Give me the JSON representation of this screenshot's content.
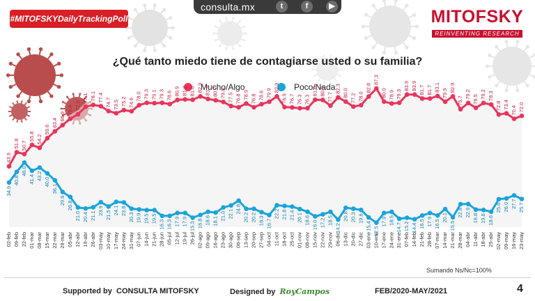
{
  "header": {
    "site": "consulta.mx",
    "tag": "#MITOFSKYDailyTrackingPoll",
    "logo_main": "MITOFSKY",
    "logo_sub": "REINVENTING RESEARCH",
    "icons": [
      "twitter-icon",
      "facebook-icon",
      "youtube-icon"
    ]
  },
  "chart_data": {
    "type": "line",
    "title": "¿Qué tanto miedo tiene de contagiarse usted o su familia?",
    "categories": [
      "02-feb",
      "09-feb",
      "22-feb",
      "01-mar",
      "08-mar",
      "15-mar",
      "22-mar",
      "29-mar",
      "05-abr",
      "12-abr",
      "19-abr",
      "26-abr",
      "03-may",
      "10-may",
      "17-may",
      "24-may",
      "31-may",
      "07-jun",
      "14-jun",
      "21-jun",
      "28-jun",
      "05-jul",
      "12-jul",
      "19-jul",
      "26-jul",
      "02-ago",
      "09-ago",
      "16-ago",
      "23-ago",
      "30-ago",
      "06-sep",
      "13-sep",
      "20-sep",
      "27-sep",
      "04-oct",
      "11-oct",
      "18-oct",
      "25-oct",
      "01-nov",
      "08-nov",
      "15-nov",
      "22-nov",
      "29-nov",
      "06-dic",
      "13-dic",
      "20-dic",
      "27-dic",
      "03-ene",
      "10-ene",
      "17-ene",
      "24-ene",
      "31-ene",
      "07-feb",
      "14-feb",
      "21-feb",
      "28-feb",
      "07-mar",
      "14-mar",
      "21-mar",
      "28-mar",
      "04-abr",
      "11-abr",
      "18-abr",
      "25-abr",
      "02-may",
      "09-may",
      "16-may",
      "23-may"
    ],
    "series": [
      {
        "name": "Mucho/Algo",
        "color": "#e8355d",
        "values": [
          43.9,
          51.8,
          50.7,
          55.8,
          54.2,
          59.6,
          63.4,
          66.9,
          70.4,
          72.9,
          77.1,
          78.1,
          77.4,
          74.7,
          73.5,
          75.2,
          74.6,
          78.0,
          79.3,
          79.1,
          79.3,
          78.6,
          80.9,
          81.2,
          81.0,
          82.9,
          81.4,
          80.7,
          79.8,
          77.5,
          76.8,
          78.9,
          76.8,
          78.6,
          79.9,
          82.9,
          76.9,
          76.7,
          76.3,
          76.3,
          81.0,
          80.9,
          77.7,
          82.3,
          80.0,
          77.2,
          78.0,
          82.8,
          87.3,
          80.0,
          78.9,
          79.3,
          83.9,
          83.9,
          81.7,
          81.7,
          83.1,
          79.9,
          82.9,
          75.7,
          79.2,
          76.5,
          79.2,
          78.3,
          72.8,
          73.4,
          70.4,
          72.0
        ]
      },
      {
        "name": "Poco/Nada",
        "color": "#1aa4dc",
        "values": [
          34.9,
          40.8,
          46.0,
          41.4,
          43.2,
          40.0,
          36.1,
          29.6,
          26.8,
          21.0,
          20.4,
          21.1,
          23.9,
          21.5,
          24.1,
          23.8,
          20.3,
          19.9,
          19.5,
          19.5,
          16.3,
          16.3,
          17.9,
          17.9,
          15.3,
          16.8,
          18.6,
          18.1,
          21.0,
          22.1,
          24.8,
          20.2,
          20.2,
          18.3,
          16.7,
          22.2,
          21.8,
          21.4,
          20.1,
          18.6,
          16.0,
          17.2,
          18.5,
          14.2,
          20.8,
          20.3,
          19.6,
          15.4,
          12.5,
          17.9,
          18.5,
          14.7,
          15.2,
          14.4,
          16.5,
          17.9,
          16.5,
          20.1,
          15.5,
          22.8,
          22.9,
          19.8,
          19.6,
          18.6,
          25.6,
          26.0,
          27.7,
          25.7
        ]
      }
    ],
    "legend": "top-center",
    "grid": false
  },
  "notes": {
    "sample": "Sumando Ns/Nc=100%"
  },
  "footer": {
    "supported_prefix": "Supported by",
    "supported_name": "CONSULTA   MITOFSKY",
    "designed": "Designed by",
    "designer": "RoyCampos",
    "period": "FEB/2020-MAY/2021",
    "page": "4"
  }
}
